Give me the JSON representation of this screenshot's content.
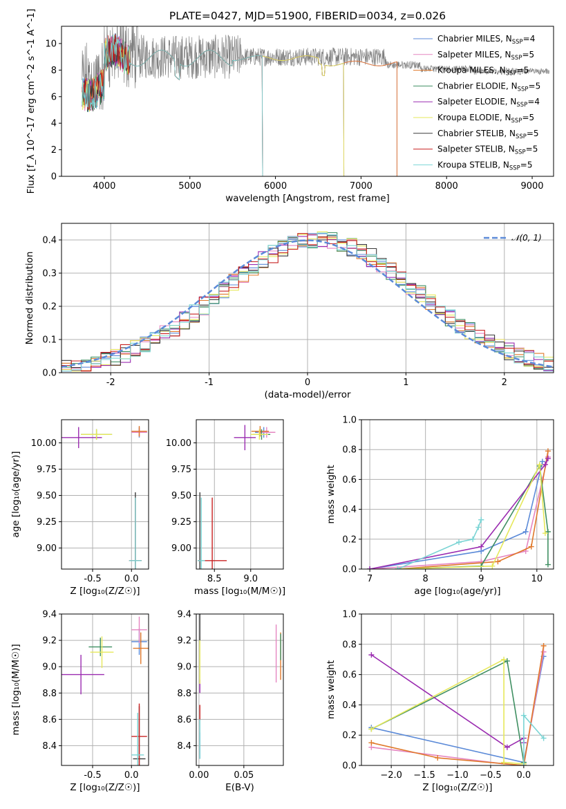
{
  "colors": [
    "#5b8ad8",
    "#e585c0",
    "#e0782a",
    "#3f8f62",
    "#9a2bb0",
    "#e6e85a",
    "#3a3a3a",
    "#c82020",
    "#7ad4d4"
  ],
  "chart_data": [
    {
      "id": "spectrum",
      "type": "line",
      "title": "PLATE=0427, MJD=51900, FIBERID=0034, z=0.026",
      "xlabel": "wavelength [Angstrom, rest frame]",
      "ylabel": "Flux [f_λ 10^-17 erg cm^-2 s^-1 A^-1]",
      "xlim": [
        3500,
        9250
      ],
      "ylim": [
        0,
        11.3
      ],
      "xticks": [
        4000,
        5000,
        6000,
        7000,
        8000,
        9000
      ],
      "yticks": [
        0,
        2,
        4,
        6,
        8,
        10
      ],
      "legend_position": "top-right",
      "observed_spectrum": {
        "x_range": [
          3740,
          9200
        ],
        "typical_flux": 9.0,
        "noise": 1.4,
        "color": "#808080"
      },
      "series": [
        {
          "name": "Chabrier MILES, N_SSP=4",
          "x_end": 7420
        },
        {
          "name": "Salpeter MILES, N_SSP=5",
          "x_end": 7420
        },
        {
          "name": "Kroupa MILES, N_SSP=5",
          "x_end": 7420
        },
        {
          "name": "Chabrier ELODIE, N_SSP=5",
          "x_end": 6800
        },
        {
          "name": "Salpeter ELODIE, N_SSP=4",
          "x_end": 6800
        },
        {
          "name": "Kroupa ELODIE, N_SSP=5",
          "x_end": 6800
        },
        {
          "name": "Chabrier STELIB, N_SSP=5",
          "x_end": 5850
        },
        {
          "name": "Salpeter STELIB, N_SSP=5",
          "x_end": 5850
        },
        {
          "name": "Kroupa STELIB, N_SSP=5",
          "x_end": 5850
        }
      ]
    },
    {
      "id": "residuals",
      "type": "line",
      "xlabel": "(data-model)/error",
      "ylabel": "Normed distribution",
      "xlim": [
        -2.5,
        2.5
      ],
      "ylim": [
        0,
        0.45
      ],
      "xticks": [
        -2,
        -1,
        0,
        1,
        2
      ],
      "yticks": [
        0.0,
        0.1,
        0.2,
        0.3,
        0.4
      ],
      "legend_position": "top-right",
      "reference_curve": {
        "name": "𝒩(0, 1)",
        "mean": 0,
        "sigma": 1
      },
      "histogram_bin_width": 0.1
    },
    {
      "id": "age_vs_Z",
      "type": "scatter",
      "xlabel": "Z [log₁₀(Z/Z☉)]",
      "ylabel": "age  [log₁₀(age/yr)]",
      "xlim": [
        -0.9,
        0.22
      ],
      "ylim": [
        8.8,
        10.22
      ],
      "xticks": [
        -0.5,
        0.0
      ],
      "yticks": [
        9.0,
        9.25,
        9.5,
        9.75,
        10.0
      ],
      "points": [
        {
          "s": 0,
          "x": 0.1,
          "y": 10.1,
          "xerr": 0.1,
          "yerr": 0.05
        },
        {
          "s": 1,
          "x": 0.1,
          "y": 10.1,
          "xerr": 0.1,
          "yerr": 0.04
        },
        {
          "s": 2,
          "x": 0.1,
          "y": 10.11,
          "xerr": 0.1,
          "yerr": 0.05
        },
        {
          "s": 3,
          "x": -0.45,
          "y": 10.08,
          "xerr": 0.2,
          "yerr": 0.05
        },
        {
          "s": 4,
          "x": -0.68,
          "y": 10.05,
          "xerr": 0.3,
          "yerr": 0.1
        },
        {
          "s": 5,
          "x": -0.45,
          "y": 10.08,
          "xerr": 0.2,
          "yerr": 0.05
        },
        {
          "s": 6,
          "x": 0.05,
          "y": 8.88,
          "xerr": 0.08,
          "yerr": 0.65
        },
        {
          "s": 7,
          "x": 0.05,
          "y": 8.88,
          "xerr": 0.08,
          "yerr": 0.6
        },
        {
          "s": 8,
          "x": 0.05,
          "y": 8.88,
          "xerr": 0.08,
          "yerr": 0.6
        }
      ]
    },
    {
      "id": "age_vs_mass",
      "type": "scatter",
      "xlabel": "mass [log₁₀(M/M☉)]",
      "ylabel": "",
      "xlim": [
        8.25,
        9.45
      ],
      "ylim": [
        8.8,
        10.22
      ],
      "xticks": [
        8.5,
        9.0
      ],
      "yticks": [
        9.0,
        9.25,
        9.5,
        9.75,
        10.0
      ],
      "points": [
        {
          "s": 0,
          "x": 9.18,
          "y": 10.1,
          "xerr": 0.12,
          "yerr": 0.05
        },
        {
          "s": 1,
          "x": 9.22,
          "y": 10.1,
          "xerr": 0.12,
          "yerr": 0.05
        },
        {
          "s": 2,
          "x": 9.13,
          "y": 10.11,
          "xerr": 0.12,
          "yerr": 0.05
        },
        {
          "s": 3,
          "x": 9.15,
          "y": 10.08,
          "xerr": 0.12,
          "yerr": 0.05
        },
        {
          "s": 4,
          "x": 8.92,
          "y": 10.05,
          "xerr": 0.15,
          "yerr": 0.12
        },
        {
          "s": 5,
          "x": 9.12,
          "y": 10.08,
          "xerr": 0.12,
          "yerr": 0.05
        },
        {
          "s": 6,
          "x": 8.3,
          "y": 8.88,
          "xerr": 0.02,
          "yerr": 0.65
        },
        {
          "s": 7,
          "x": 8.47,
          "y": 8.88,
          "xerr": 0.2,
          "yerr": 0.6
        },
        {
          "s": 8,
          "x": 8.32,
          "y": 8.88,
          "xerr": 0.05,
          "yerr": 0.6
        }
      ]
    },
    {
      "id": "weight_vs_age",
      "type": "line",
      "xlabel": "age  [log₁₀(age/yr)]",
      "ylabel": "mass weight",
      "xlim": [
        6.85,
        10.3
      ],
      "ylim": [
        0,
        1
      ],
      "xticks": [
        7,
        8,
        9,
        10
      ],
      "yticks": [
        0.0,
        0.2,
        0.4,
        0.6,
        0.8,
        1.0
      ],
      "series": [
        {
          "s": 0,
          "x": [
            7.0,
            9.0,
            9.8,
            10.1
          ],
          "y": [
            0.0,
            0.12,
            0.25,
            0.72
          ]
        },
        {
          "s": 1,
          "x": [
            7.0,
            9.0,
            9.8,
            10.1,
            10.2
          ],
          "y": [
            0.0,
            0.05,
            0.12,
            0.6,
            0.75
          ]
        },
        {
          "s": 2,
          "x": [
            7.5,
            9.3,
            9.9,
            10.2
          ],
          "y": [
            0.0,
            0.05,
            0.15,
            0.79
          ]
        },
        {
          "s": 3,
          "x": [
            7.5,
            9.0,
            10.05,
            10.2,
            10.2
          ],
          "y": [
            0.0,
            0.02,
            0.69,
            0.25,
            0.03
          ]
        },
        {
          "s": 4,
          "x": [
            7.0,
            9.0,
            10.15,
            10.2
          ],
          "y": [
            0.0,
            0.15,
            0.7,
            0.74
          ]
        },
        {
          "s": 5,
          "x": [
            7.5,
            9.2,
            10.05,
            10.15
          ],
          "y": [
            0.0,
            0.02,
            0.7,
            0.24
          ]
        },
        {
          "s": 8,
          "x": [
            7.5,
            8.6,
            8.85,
            8.95,
            9.0,
            9.0
          ],
          "y": [
            0.0,
            0.18,
            0.2,
            0.28,
            0.33,
            0.33
          ]
        }
      ]
    },
    {
      "id": "mass_vs_Z",
      "type": "scatter",
      "xlabel": "Z [log₁₀(Z/Z☉)]",
      "ylabel": "mass [log₁₀(M/M☉)]",
      "xlim": [
        -0.9,
        0.22
      ],
      "ylim": [
        8.25,
        9.4
      ],
      "xticks": [
        -0.5,
        0.0
      ],
      "yticks": [
        8.4,
        8.6,
        8.8,
        9.0,
        9.2,
        9.4
      ],
      "points": [
        {
          "s": 0,
          "x": 0.1,
          "y": 9.19,
          "xerr": 0.1,
          "yerr": 0.1
        },
        {
          "s": 1,
          "x": 0.1,
          "y": 9.28,
          "xerr": 0.1,
          "yerr": 0.1
        },
        {
          "s": 2,
          "x": 0.12,
          "y": 9.14,
          "xerr": 0.1,
          "yerr": 0.12
        },
        {
          "s": 3,
          "x": -0.4,
          "y": 9.15,
          "xerr": 0.15,
          "yerr": 0.07
        },
        {
          "s": 4,
          "x": -0.65,
          "y": 8.94,
          "xerr": 0.3,
          "yerr": 0.15
        },
        {
          "s": 5,
          "x": -0.38,
          "y": 9.11,
          "xerr": 0.15,
          "yerr": 0.12
        },
        {
          "s": 6,
          "x": 0.1,
          "y": 8.3,
          "xerr": 0.08,
          "yerr": 0.4
        },
        {
          "s": 7,
          "x": 0.1,
          "y": 8.47,
          "xerr": 0.1,
          "yerr": 0.25
        },
        {
          "s": 8,
          "x": 0.08,
          "y": 8.33,
          "xerr": 0.08,
          "yerr": 0.32
        }
      ]
    },
    {
      "id": "mass_vs_EBV",
      "type": "scatter",
      "xlabel": "E(B-V)",
      "ylabel": "",
      "xlim": [
        -0.003,
        0.094
      ],
      "ylim": [
        8.25,
        9.4
      ],
      "xticks": [
        0.0,
        0.05
      ],
      "yticks": [
        8.4,
        8.6,
        8.8,
        9.0,
        9.2,
        9.4
      ],
      "points": [
        {
          "s": 0,
          "x": 0.001,
          "y": 8.4,
          "xerr": 0,
          "yerr": 0.1
        },
        {
          "s": 1,
          "x": 0.086,
          "y": 9.1,
          "xerr": 0,
          "yerr": 0.22
        },
        {
          "s": 2,
          "x": 0.091,
          "y": 9.08,
          "xerr": 0,
          "yerr": 0.18
        },
        {
          "s": 3,
          "x": 0.091,
          "y": 9.15,
          "xerr": 0,
          "yerr": 0.1
        },
        {
          "s": 4,
          "x": 0.001,
          "y": 8.85,
          "xerr": 0,
          "yerr": 0.05
        },
        {
          "s": 5,
          "x": 0.001,
          "y": 9.05,
          "xerr": 0,
          "yerr": 0.18
        },
        {
          "s": 6,
          "x": 0.001,
          "y": 9.3,
          "xerr": 0,
          "yerr": 0.1
        },
        {
          "s": 7,
          "x": 0.001,
          "y": 8.65,
          "xerr": 0,
          "yerr": 0.06
        },
        {
          "s": 8,
          "x": 0.001,
          "y": 8.45,
          "xerr": 0,
          "yerr": 0.15
        }
      ]
    },
    {
      "id": "weight_vs_Z",
      "type": "line",
      "xlabel": "Z [log₁₀(Z/Z☉)]",
      "ylabel": "mass weight",
      "xlim": [
        -2.45,
        0.45
      ],
      "ylim": [
        0,
        1
      ],
      "xticks": [
        -2.0,
        -1.5,
        -1.0,
        -0.5,
        0.0
      ],
      "yticks": [
        0.0,
        0.2,
        0.4,
        0.6,
        0.8,
        1.0
      ],
      "series": [
        {
          "s": 0,
          "x": [
            -2.3,
            0.0,
            0.3
          ],
          "y": [
            0.25,
            0.02,
            0.72
          ]
        },
        {
          "s": 1,
          "x": [
            -2.3,
            -0.3,
            0.0,
            0.3
          ],
          "y": [
            0.12,
            0.01,
            0.0,
            0.75
          ]
        },
        {
          "s": 2,
          "x": [
            -2.3,
            -1.3,
            0.0,
            0.3
          ],
          "y": [
            0.15,
            0.05,
            0.0,
            0.79
          ]
        },
        {
          "s": 3,
          "x": [
            -2.3,
            -0.25,
            0.0
          ],
          "y": [
            0.24,
            0.69,
            0.02
          ]
        },
        {
          "s": 4,
          "x": [
            -2.3,
            -0.25,
            0.0,
            0.0
          ],
          "y": [
            0.73,
            0.12,
            0.18,
            0.15
          ]
        },
        {
          "s": 5,
          "x": [
            -2.3,
            -0.3,
            -0.3,
            0.0
          ],
          "y": [
            0.24,
            0.7,
            0.02,
            0.01
          ]
        },
        {
          "s": 8,
          "x": [
            0.0,
            0.0,
            0.3
          ],
          "y": [
            0.0,
            0.33,
            0.18
          ]
        }
      ]
    }
  ]
}
